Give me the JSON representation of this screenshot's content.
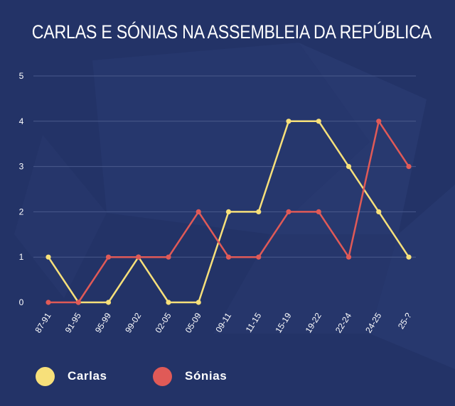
{
  "chart_data": {
    "type": "line",
    "title": "CARLAS E SÓNIAS NA ASSEMBLEIA DA REPÚBLICA",
    "categories": [
      "87-91",
      "91-95",
      "95-99",
      "99-02",
      "02-05",
      "05-09",
      "09-11",
      "11-15",
      "15-19",
      "19-22",
      "22-24",
      "24-25",
      "25-?"
    ],
    "yticks": [
      "0",
      "1",
      "2",
      "3",
      "4",
      "5"
    ],
    "ylim": [
      0,
      5
    ],
    "xlabel": "",
    "ylabel": "",
    "grid": true,
    "legend_position": "bottom-left",
    "series": [
      {
        "name": "Carlas",
        "color": "#f7e07a",
        "values": [
          1,
          0,
          0,
          1,
          0,
          0,
          2,
          2,
          4,
          4,
          3,
          2,
          1
        ]
      },
      {
        "name": "Sónias",
        "color": "#e05a57",
        "values": [
          0,
          0,
          1,
          1,
          1,
          2,
          1,
          1,
          2,
          2,
          1,
          4,
          3
        ]
      }
    ]
  }
}
